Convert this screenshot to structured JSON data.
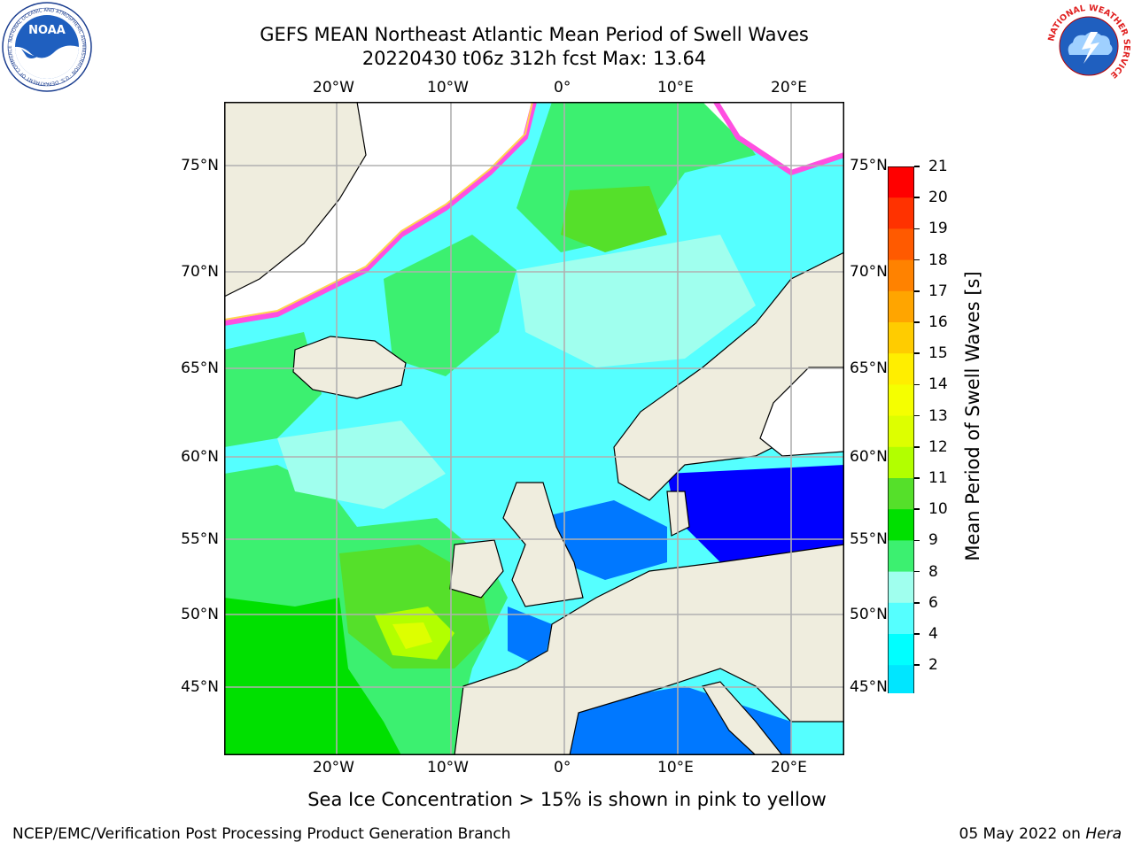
{
  "header": {
    "title_line1": "GEFS MEAN Northeast Atlantic Mean Period of Swell Waves",
    "title_line2": "20220430 t06z 312h fcst   Max: 13.64"
  },
  "logos": {
    "left": {
      "name": "noaa-logo",
      "text": "NOAA",
      "ring_text": "NATIONAL OCEANIC AND ATMOSPHERIC ADMINISTRATION · U.S. DEPARTMENT OF COMMERCE"
    },
    "right": {
      "name": "nws-logo",
      "ring_text": "NATIONAL WEATHER SERVICE"
    }
  },
  "map": {
    "lon_labels": [
      "20°W",
      "10°W",
      "0°",
      "10°E",
      "20°E"
    ],
    "lat_labels": [
      "75°N",
      "70°N",
      "65°N",
      "60°N",
      "55°N",
      "50°N",
      "45°N"
    ],
    "colors": {
      "land": "#efedde",
      "grid": "#b0b0b0",
      "ice_outline": "#ff4fe0",
      "ice_inner": "#ffd54f"
    }
  },
  "colorbar": {
    "label": "Mean Period of Swell Waves [s]",
    "ticks": [
      "21",
      "20",
      "19",
      "18",
      "17",
      "16",
      "15",
      "14",
      "13",
      "12",
      "11",
      "10",
      "9",
      "8",
      "6",
      "4",
      "2"
    ],
    "colors_top_to_bottom": [
      "#ff0000",
      "#ff3200",
      "#ff5a00",
      "#ff8200",
      "#ffa500",
      "#ffcc00",
      "#ffee00",
      "#f5ff00",
      "#ddff00",
      "#b2ff00",
      "#55e02a",
      "#00e000",
      "#3cf070",
      "#a0ffee",
      "#55ffff",
      "#00ffff",
      "#00e6ff",
      "#0078ff"
    ],
    "extend_color": "#0000ff"
  },
  "footer": {
    "note": "Sea Ice Concentration > 15% is shown in pink to yellow",
    "credit_left": "NCEP/EMC/Verification Post Processing Product Generation Branch",
    "credit_date": "05 May 2022 on ",
    "credit_host": "Hera"
  }
}
